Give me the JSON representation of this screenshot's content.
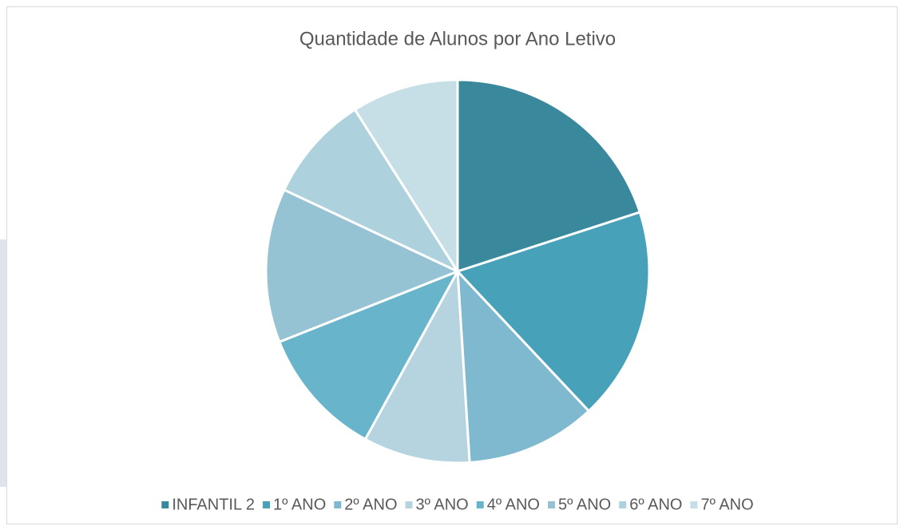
{
  "chart_data": {
    "type": "pie",
    "title": "Quantidade de Alunos por Ano Letivo",
    "categories": [
      "INFANTIL 2",
      "1º ANO",
      "2º ANO",
      "3º ANO",
      "4º ANO",
      "5º ANO",
      "6º ANO",
      "7º ANO"
    ],
    "values": [
      20,
      18,
      11,
      9,
      11,
      13,
      9,
      9
    ],
    "colors": [
      "#3a889b",
      "#47a1b9",
      "#7fb9cf",
      "#b5d4e0",
      "#68b4cb",
      "#95c3d4",
      "#aed1de",
      "#c6dfe7"
    ],
    "legend": "bottom"
  }
}
